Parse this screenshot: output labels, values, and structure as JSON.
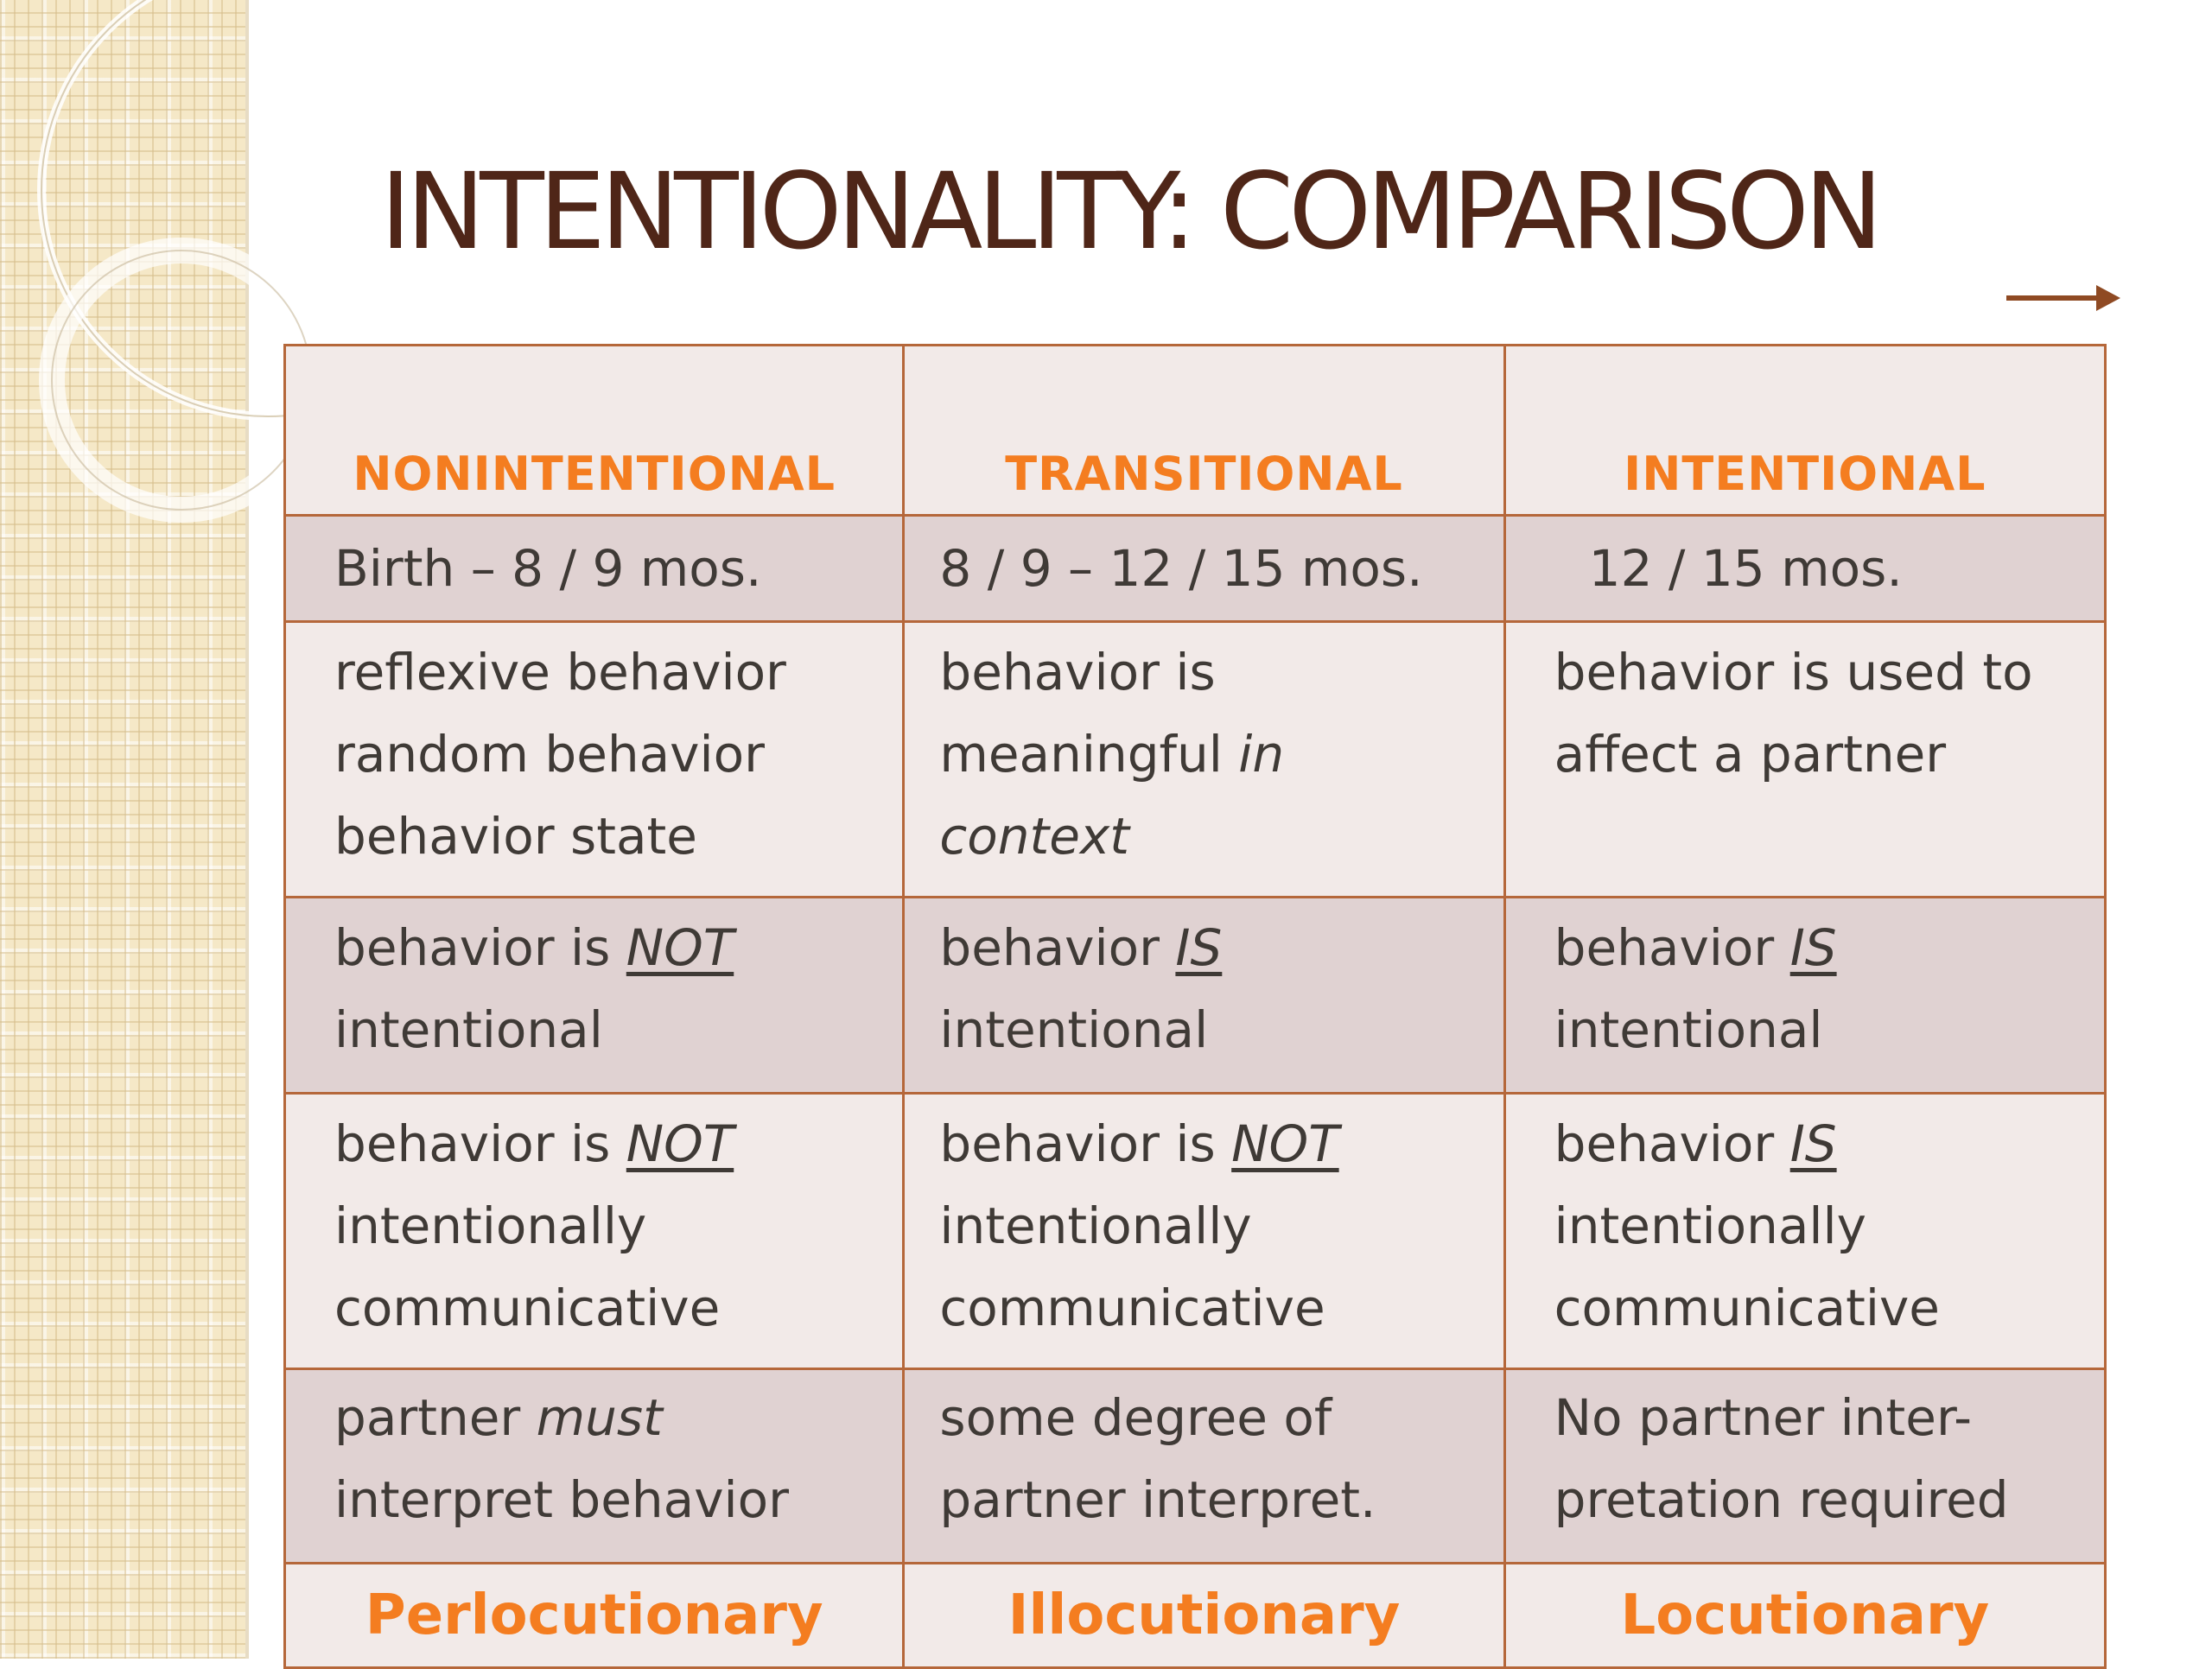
{
  "slide": {
    "title": "INTENTIONALITY: COMPARISON",
    "arrow_icon": "right-arrow-icon",
    "accent_color": "#f47d20",
    "title_color": "#4f2618",
    "border_color": "#b5673a"
  },
  "table": {
    "headers": [
      "NONINTENTIONAL",
      "TRANSITIONAL",
      "INTENTIONAL"
    ],
    "ages": [
      "Birth – 8 / 9 mos.",
      "8 / 9 – 12 / 15 mos.",
      "12 / 15 mos."
    ],
    "behavior": {
      "nonintentional": [
        "reflexive behavior",
        "random behavior",
        "behavior state"
      ],
      "transitional": {
        "line1": "behavior is",
        "line2_pre": "meaningful ",
        "line2_em": "in",
        "line3_em": "context"
      },
      "intentional": [
        "behavior is used to",
        "affect a partner"
      ]
    },
    "intentional_row": {
      "nonintentional": {
        "pre": "behavior is ",
        "em": "NOT",
        "line2": "intentional"
      },
      "transitional": {
        "pre": "behavior ",
        "em": "IS",
        "line2": "intentional"
      },
      "intentional": {
        "pre": "behavior ",
        "em": "IS",
        "line2": "intentional"
      }
    },
    "communicative_row": {
      "nonintentional": {
        "pre": "behavior is ",
        "em": "NOT",
        "line2": "intentionally",
        "line3": "communicative"
      },
      "transitional": {
        "pre": "behavior is ",
        "em": "NOT",
        "line2": "intentionally",
        "line3": "communicative"
      },
      "intentional": {
        "pre": "behavior ",
        "em": "IS",
        "line2": "intentionally",
        "line3": "communicative"
      }
    },
    "partner_row": {
      "nonintentional": {
        "pre": "partner ",
        "em": "must",
        "line2": "interpret behavior"
      },
      "transitional": [
        "some degree of",
        "partner interpret."
      ],
      "intentional": [
        "No partner inter-",
        "pretation required"
      ]
    },
    "footer": [
      "Perlocutionary",
      "Illocutionary",
      "Locutionary"
    ]
  }
}
